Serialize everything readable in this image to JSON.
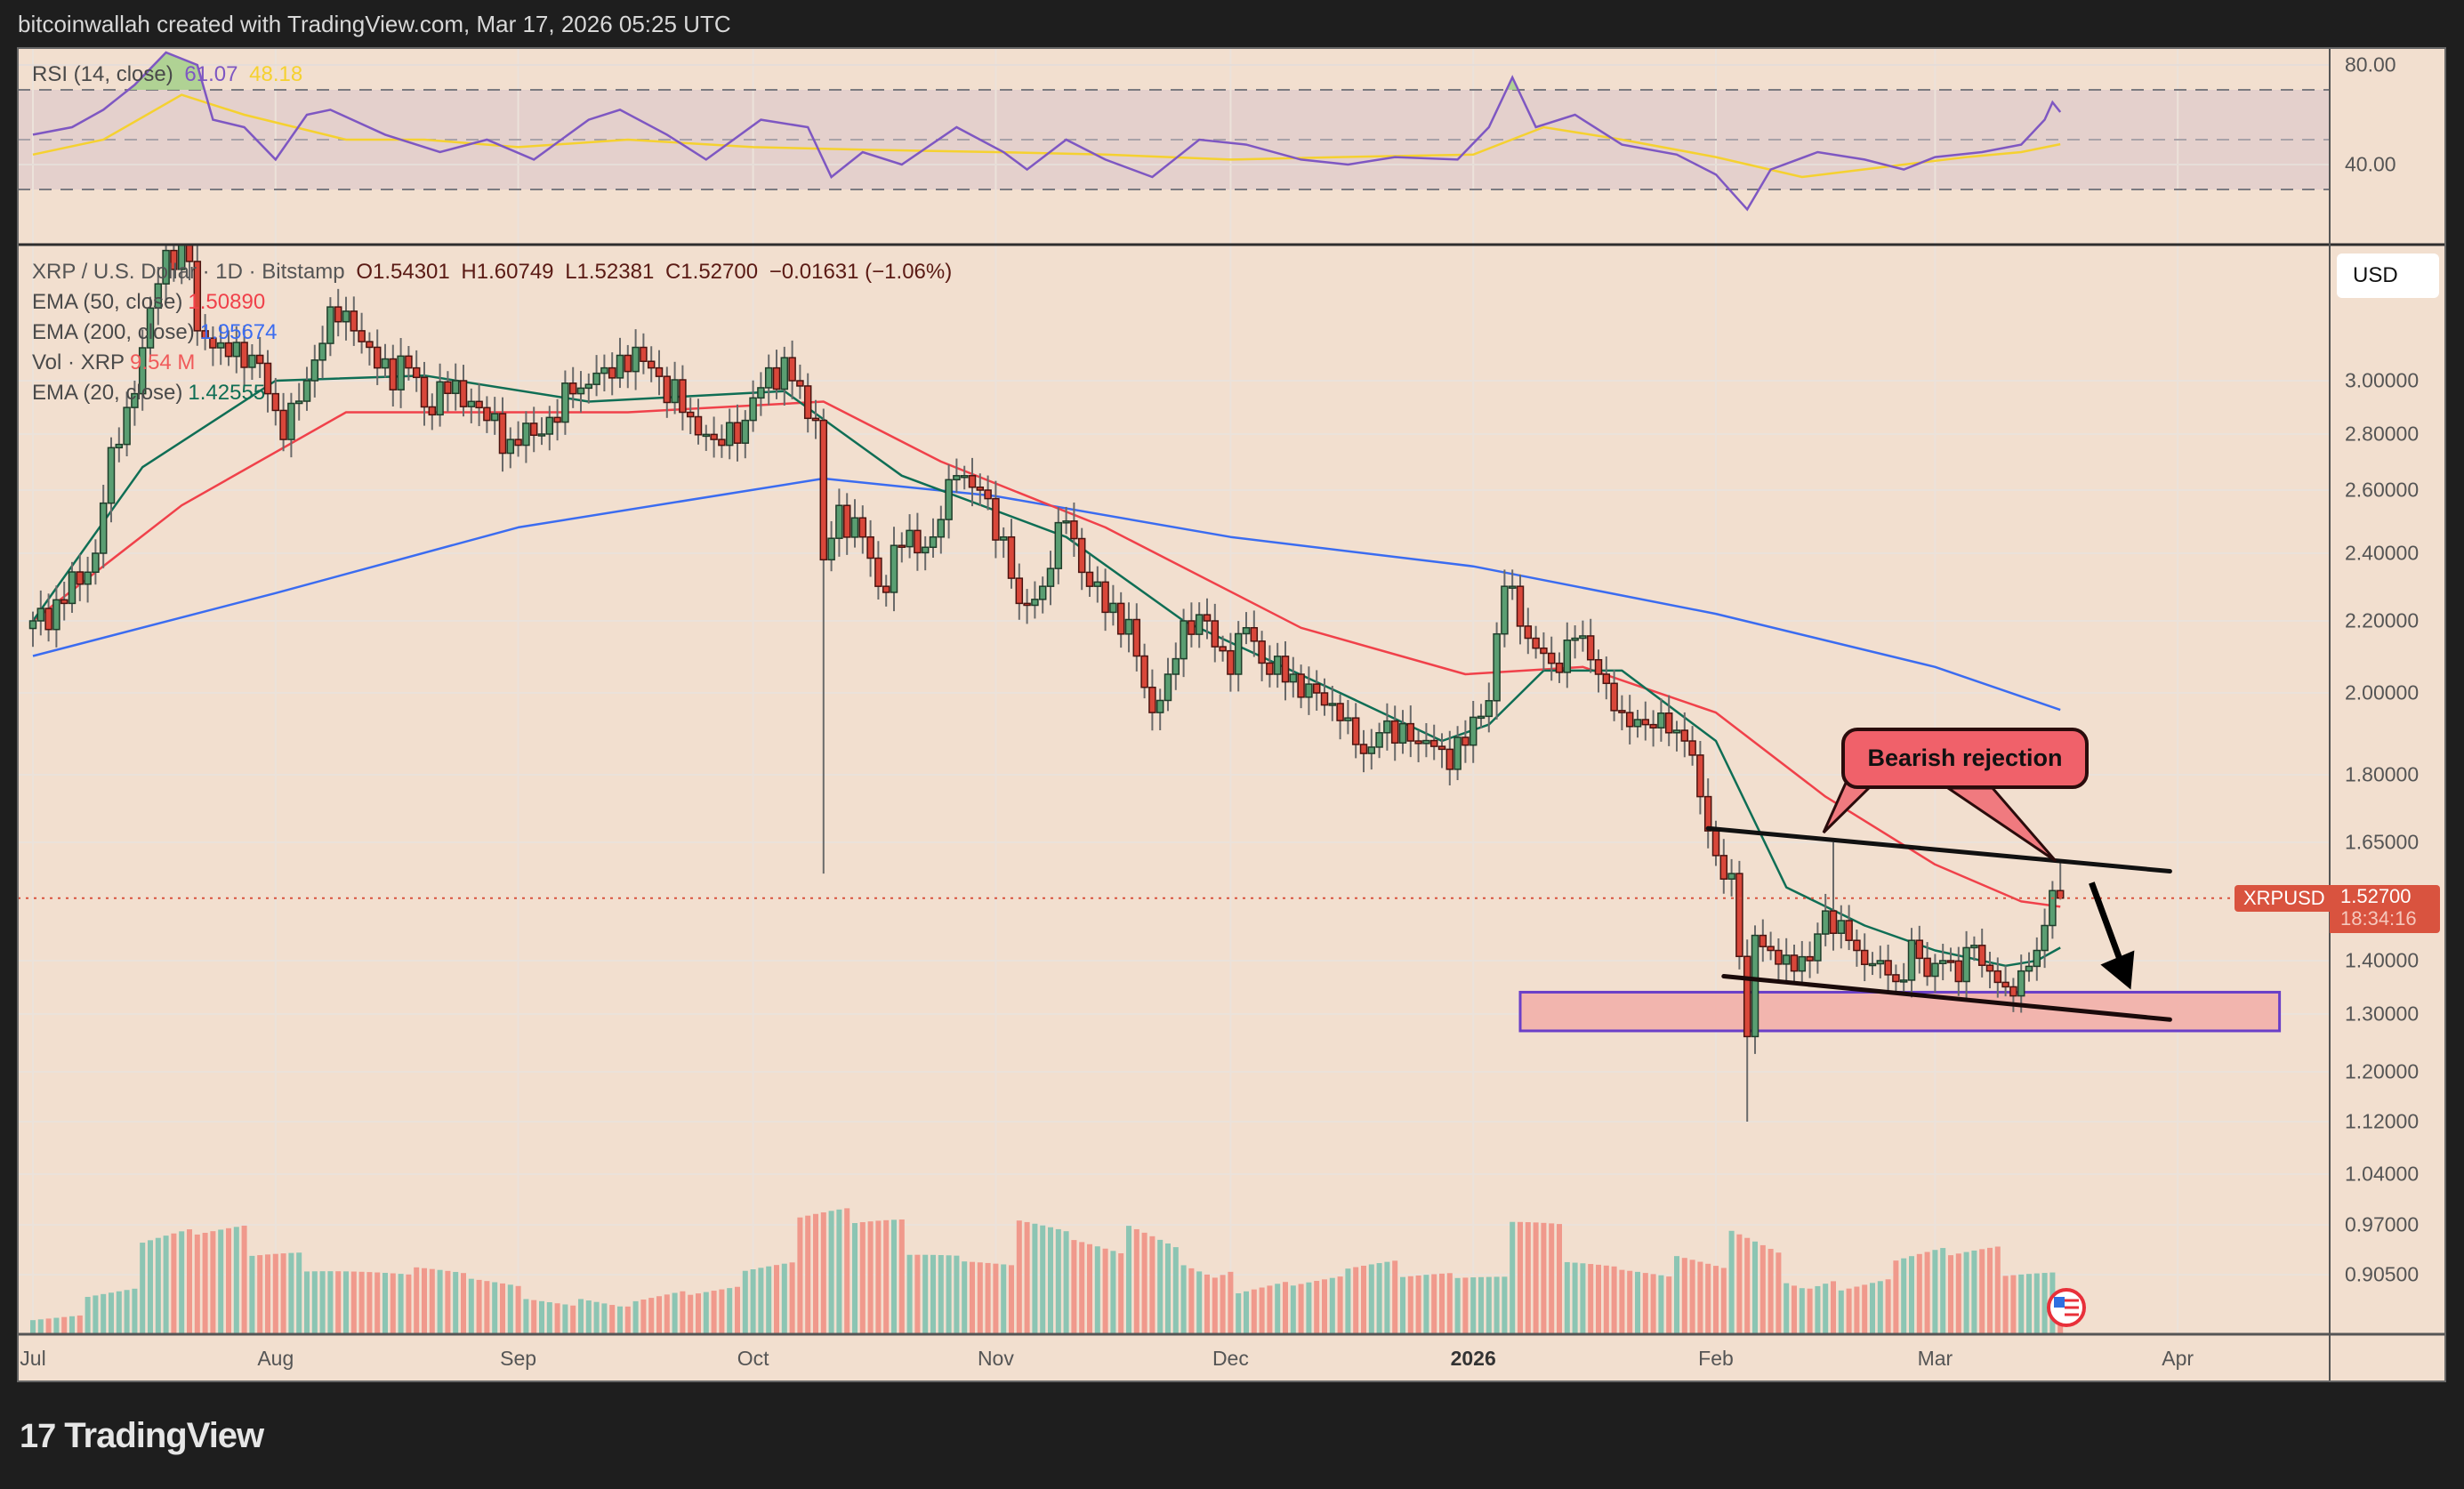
{
  "header": {
    "title": "bitcoinwallah created with TradingView.com, Mar 17, 2026 05:25 UTC"
  },
  "rsi_legend": {
    "label": "RSI (14, close)",
    "rsi": "61.07",
    "signal": "48.18"
  },
  "legend": {
    "symbol": "XRP / U.S. Dollar · 1D · Bitstamp",
    "open": "O1.54301",
    "high": "H1.60749",
    "low": "L1.52381",
    "close": "C1.52700",
    "change": "−0.01631 (−1.06%)",
    "ema50_label": "EMA (50, close)",
    "ema50_value": "1.50890",
    "ema200_label": "EMA (200, close)",
    "ema200_value": "1.95674",
    "vol_label": "Vol · XRP",
    "vol_value": "9.54 M",
    "ema20_label": "EMA (20, close)",
    "ema20_value": "1.42555"
  },
  "currency_button": "USD",
  "last_price": {
    "symbol": "XRPUSD",
    "price": "1.52700",
    "countdown": "18:34:16"
  },
  "annotation": {
    "callout": "Bearish rejection"
  },
  "logo": "TradingView",
  "colors": {
    "background": "#f2dfcf",
    "up": "#5a9e72",
    "down": "#d9473a",
    "ema50": "#f0414a",
    "ema200": "#3b6cf0",
    "ema20": "#0f6e55",
    "rsi": "#7e57c2",
    "rsi_signal": "#f5d130",
    "zone": "#f2b5ae",
    "zone_border": "#6a3fc8"
  },
  "chart_data": {
    "type": "candlestick",
    "scale": "log",
    "grid": true,
    "price_ticks": [
      "3.00000",
      "2.80000",
      "2.60000",
      "2.40000",
      "2.20000",
      "2.00000",
      "1.80000",
      "1.65000",
      "1.40000",
      "1.30000",
      "1.20000",
      "1.12000",
      "1.04000",
      "0.97000",
      "0.90500"
    ],
    "rsi_ticks": [
      "80.00",
      "40.00"
    ],
    "rsi_levels": [
      70,
      50,
      30
    ],
    "time_ticks": [
      {
        "label": "Jul",
        "date": "2025-07-01"
      },
      {
        "label": "Aug",
        "date": "2025-08-01"
      },
      {
        "label": "Sep",
        "date": "2025-09-01"
      },
      {
        "label": "Oct",
        "date": "2025-10-01"
      },
      {
        "label": "Nov",
        "date": "2025-11-01"
      },
      {
        "label": "Dec",
        "date": "2025-12-01"
      },
      {
        "label": "2026",
        "date": "2026-01-01",
        "bold": true
      },
      {
        "label": "Feb",
        "date": "2026-02-01"
      },
      {
        "label": "Mar",
        "date": "2026-03-01"
      },
      {
        "label": "Apr",
        "date": "2026-04-01"
      }
    ],
    "close_path": [
      [
        "2025-07-01",
        2.2
      ],
      [
        "2025-07-05",
        2.25
      ],
      [
        "2025-07-09",
        2.4
      ],
      [
        "2025-07-11",
        2.75
      ],
      [
        "2025-07-14",
        2.95
      ],
      [
        "2025-07-17",
        3.4
      ],
      [
        "2025-07-18",
        3.55
      ],
      [
        "2025-07-21",
        3.5
      ],
      [
        "2025-07-22",
        3.2
      ],
      [
        "2025-07-25",
        3.15
      ],
      [
        "2025-07-29",
        3.1
      ],
      [
        "2025-07-31",
        2.95
      ],
      [
        "2025-08-02",
        2.78
      ],
      [
        "2025-08-05",
        3.0
      ],
      [
        "2025-08-08",
        3.3
      ],
      [
        "2025-08-11",
        3.2
      ],
      [
        "2025-08-14",
        3.05
      ],
      [
        "2025-08-18",
        3.05
      ],
      [
        "2025-08-20",
        2.9
      ],
      [
        "2025-08-24",
        3.0
      ],
      [
        "2025-08-28",
        2.85
      ],
      [
        "2025-08-31",
        2.78
      ],
      [
        "2025-09-04",
        2.8
      ],
      [
        "2025-09-08",
        2.95
      ],
      [
        "2025-09-12",
        3.05
      ],
      [
        "2025-09-14",
        3.1
      ],
      [
        "2025-09-18",
        3.05
      ],
      [
        "2025-09-22",
        2.88
      ],
      [
        "2025-09-26",
        2.78
      ],
      [
        "2025-09-30",
        2.85
      ],
      [
        "2025-10-03",
        3.05
      ],
      [
        "2025-10-06",
        3.0
      ],
      [
        "2025-10-09",
        2.85
      ],
      [
        "2025-10-10",
        2.38
      ],
      [
        "2025-10-12",
        2.55
      ],
      [
        "2025-10-15",
        2.45
      ],
      [
        "2025-10-17",
        2.3
      ],
      [
        "2025-10-20",
        2.42
      ],
      [
        "2025-10-24",
        2.45
      ],
      [
        "2025-10-27",
        2.65
      ],
      [
        "2025-10-30",
        2.6
      ],
      [
        "2025-11-02",
        2.45
      ],
      [
        "2025-11-04",
        2.25
      ],
      [
        "2025-11-07",
        2.3
      ],
      [
        "2025-11-10",
        2.5
      ],
      [
        "2025-11-13",
        2.3
      ],
      [
        "2025-11-16",
        2.25
      ],
      [
        "2025-11-19",
        2.1
      ],
      [
        "2025-11-21",
        1.95
      ],
      [
        "2025-11-23",
        2.05
      ],
      [
        "2025-11-25",
        2.2
      ],
      [
        "2025-11-28",
        2.2
      ],
      [
        "2025-12-01",
        2.05
      ],
      [
        "2025-12-03",
        2.18
      ],
      [
        "2025-12-06",
        2.05
      ],
      [
        "2025-12-09",
        2.05
      ],
      [
        "2025-12-12",
        2.0
      ],
      [
        "2025-12-15",
        1.93
      ],
      [
        "2025-12-18",
        1.85
      ],
      [
        "2025-12-20",
        1.9
      ],
      [
        "2025-12-24",
        1.88
      ],
      [
        "2025-12-28",
        1.86
      ],
      [
        "2025-12-31",
        1.87
      ],
      [
        "2026-01-03",
        1.98
      ],
      [
        "2026-01-05",
        2.3
      ],
      [
        "2026-01-06",
        2.3
      ],
      [
        "2026-01-08",
        2.15
      ],
      [
        "2026-01-11",
        2.08
      ],
      [
        "2026-01-14",
        2.15
      ],
      [
        "2026-01-17",
        2.05
      ],
      [
        "2026-01-20",
        1.95
      ],
      [
        "2026-01-23",
        1.92
      ],
      [
        "2026-01-26",
        1.9
      ],
      [
        "2026-01-28",
        1.88
      ],
      [
        "2026-01-30",
        1.75
      ],
      [
        "2026-02-01",
        1.62
      ],
      [
        "2026-02-03",
        1.58
      ],
      [
        "2026-02-05",
        1.26
      ],
      [
        "2026-02-06",
        1.45
      ],
      [
        "2026-02-08",
        1.42
      ],
      [
        "2026-02-11",
        1.38
      ],
      [
        "2026-02-13",
        1.4
      ],
      [
        "2026-02-15",
        1.5
      ],
      [
        "2026-02-17",
        1.48
      ],
      [
        "2026-02-19",
        1.42
      ],
      [
        "2026-02-22",
        1.4
      ],
      [
        "2026-02-24",
        1.36
      ],
      [
        "2026-02-26",
        1.44
      ],
      [
        "2026-02-28",
        1.37
      ],
      [
        "2026-03-02",
        1.4
      ],
      [
        "2026-03-04",
        1.36
      ],
      [
        "2026-03-06",
        1.43
      ],
      [
        "2026-03-08",
        1.38
      ],
      [
        "2026-03-10",
        1.35
      ],
      [
        "2026-03-12",
        1.38
      ],
      [
        "2026-03-14",
        1.42
      ],
      [
        "2026-03-15",
        1.47
      ],
      [
        "2026-03-16",
        1.543
      ],
      [
        "2026-03-17",
        1.527
      ]
    ],
    "wick_extremes": [
      {
        "date": "2025-10-10",
        "low": 1.58
      },
      {
        "date": "2026-02-05",
        "low": 1.12
      },
      {
        "date": "2026-02-16",
        "high": 1.65
      },
      {
        "date": "2026-03-17",
        "open": 1.54301,
        "high": 1.60749,
        "low": 1.52381,
        "close": 1.527
      }
    ],
    "ema200": [
      [
        "2025-07-01",
        2.1
      ],
      [
        "2025-08-01",
        2.28
      ],
      [
        "2025-09-01",
        2.48
      ],
      [
        "2025-10-10",
        2.64
      ],
      [
        "2025-11-01",
        2.58
      ],
      [
        "2025-12-01",
        2.45
      ],
      [
        "2026-01-01",
        2.36
      ],
      [
        "2026-02-01",
        2.22
      ],
      [
        "2026-03-01",
        2.07
      ],
      [
        "2026-03-17",
        1.95674
      ]
    ],
    "ema50": [
      [
        "2025-07-01",
        2.2
      ],
      [
        "2025-07-20",
        2.55
      ],
      [
        "2025-08-10",
        2.88
      ],
      [
        "2025-09-15",
        2.88
      ],
      [
        "2025-10-10",
        2.92
      ],
      [
        "2025-10-25",
        2.7
      ],
      [
        "2025-11-15",
        2.48
      ],
      [
        "2025-12-10",
        2.18
      ],
      [
        "2025-12-31",
        2.05
      ],
      [
        "2026-01-15",
        2.07
      ],
      [
        "2026-02-01",
        1.95
      ],
      [
        "2026-02-15",
        1.75
      ],
      [
        "2026-03-01",
        1.6
      ],
      [
        "2026-03-12",
        1.52
      ],
      [
        "2026-03-17",
        1.5089
      ]
    ],
    "ema20": [
      [
        "2025-07-01",
        2.2
      ],
      [
        "2025-07-15",
        2.68
      ],
      [
        "2025-08-01",
        3.0
      ],
      [
        "2025-08-20",
        3.02
      ],
      [
        "2025-09-10",
        2.92
      ],
      [
        "2025-10-05",
        2.96
      ],
      [
        "2025-10-20",
        2.65
      ],
      [
        "2025-11-10",
        2.45
      ],
      [
        "2025-11-25",
        2.2
      ],
      [
        "2025-12-15",
        2.0
      ],
      [
        "2025-12-28",
        1.88
      ],
      [
        "2026-01-03",
        1.92
      ],
      [
        "2026-01-10",
        2.06
      ],
      [
        "2026-01-20",
        2.06
      ],
      [
        "2026-02-01",
        1.88
      ],
      [
        "2026-02-10",
        1.55
      ],
      [
        "2026-02-20",
        1.47
      ],
      [
        "2026-03-01",
        1.42
      ],
      [
        "2026-03-10",
        1.39
      ],
      [
        "2026-03-14",
        1.4
      ],
      [
        "2026-03-17",
        1.42555
      ]
    ],
    "volume_weekly_avg_m": [
      12,
      23,
      45,
      42,
      30,
      23,
      23,
      26,
      24,
      18,
      23,
      26,
      23,
      30,
      48,
      42,
      29,
      27,
      45,
      42,
      58,
      48,
      30,
      27,
      30,
      23,
      21,
      41,
      27,
      26,
      36,
      58,
      38,
      30,
      39,
      35,
      23,
      23
    ],
    "volume_last_m": 9.54,
    "rsi": [
      [
        "2025-07-01",
        52
      ],
      [
        "2025-07-06",
        55
      ],
      [
        "2025-07-10",
        62
      ],
      [
        "2025-07-14",
        72
      ],
      [
        "2025-07-18",
        85
      ],
      [
        "2025-07-22",
        80
      ],
      [
        "2025-07-24",
        58
      ],
      [
        "2025-07-28",
        55
      ],
      [
        "2025-08-01",
        42
      ],
      [
        "2025-08-05",
        60
      ],
      [
        "2025-08-08",
        62
      ],
      [
        "2025-08-15",
        52
      ],
      [
        "2025-08-22",
        45
      ],
      [
        "2025-08-28",
        50
      ],
      [
        "2025-09-03",
        42
      ],
      [
        "2025-09-10",
        58
      ],
      [
        "2025-09-14",
        62
      ],
      [
        "2025-09-20",
        52
      ],
      [
        "2025-09-25",
        42
      ],
      [
        "2025-10-02",
        58
      ],
      [
        "2025-10-08",
        55
      ],
      [
        "2025-10-11",
        35
      ],
      [
        "2025-10-15",
        45
      ],
      [
        "2025-10-20",
        40
      ],
      [
        "2025-10-27",
        55
      ],
      [
        "2025-11-02",
        45
      ],
      [
        "2025-11-05",
        38
      ],
      [
        "2025-11-10",
        50
      ],
      [
        "2025-11-15",
        42
      ],
      [
        "2025-11-21",
        35
      ],
      [
        "2025-11-27",
        50
      ],
      [
        "2025-12-03",
        48
      ],
      [
        "2025-12-10",
        42
      ],
      [
        "2025-12-16",
        40
      ],
      [
        "2025-12-22",
        43
      ],
      [
        "2025-12-30",
        42
      ],
      [
        "2026-01-03",
        55
      ],
      [
        "2026-01-06",
        75
      ],
      [
        "2026-01-09",
        55
      ],
      [
        "2026-01-14",
        60
      ],
      [
        "2026-01-20",
        48
      ],
      [
        "2026-01-27",
        44
      ],
      [
        "2026-02-01",
        36
      ],
      [
        "2026-02-05",
        22
      ],
      [
        "2026-02-08",
        38
      ],
      [
        "2026-02-14",
        45
      ],
      [
        "2026-02-20",
        42
      ],
      [
        "2026-02-25",
        38
      ],
      [
        "2026-03-01",
        43
      ],
      [
        "2026-03-07",
        45
      ],
      [
        "2026-03-12",
        48
      ],
      [
        "2026-03-15",
        58
      ],
      [
        "2026-03-16",
        65
      ],
      [
        "2026-03-17",
        61.07
      ]
    ],
    "rsi_signal": [
      [
        "2025-07-01",
        44
      ],
      [
        "2025-07-10",
        50
      ],
      [
        "2025-07-20",
        68
      ],
      [
        "2025-07-28",
        60
      ],
      [
        "2025-08-10",
        50
      ],
      [
        "2025-08-20",
        50
      ],
      [
        "2025-09-01",
        47
      ],
      [
        "2025-09-15",
        50
      ],
      [
        "2025-10-01",
        47
      ],
      [
        "2025-10-15",
        46
      ],
      [
        "2025-11-01",
        45
      ],
      [
        "2025-11-15",
        44
      ],
      [
        "2025-12-01",
        42
      ],
      [
        "2025-12-15",
        43
      ],
      [
        "2026-01-01",
        44
      ],
      [
        "2026-01-10",
        55
      ],
      [
        "2026-01-20",
        50
      ],
      [
        "2026-02-01",
        43
      ],
      [
        "2026-02-12",
        35
      ],
      [
        "2026-02-25",
        40
      ],
      [
        "2026-03-05",
        43
      ],
      [
        "2026-03-12",
        45
      ],
      [
        "2026-03-17",
        48.18
      ]
    ],
    "drawings": {
      "support_zone": {
        "from": "2026-01-07",
        "to": "2026-04-14",
        "low": 1.27,
        "high": 1.34
      },
      "upper_trendline": [
        [
          "2026-01-31",
          1.68
        ],
        [
          "2026-03-31",
          1.585
        ]
      ],
      "lower_trendline": [
        [
          "2026-02-02",
          1.37
        ],
        [
          "2026-03-31",
          1.29
        ]
      ],
      "arrow": [
        [
          "2026-03-21",
          1.56
        ],
        [
          "2026-03-26",
          1.345
        ]
      ]
    }
  }
}
